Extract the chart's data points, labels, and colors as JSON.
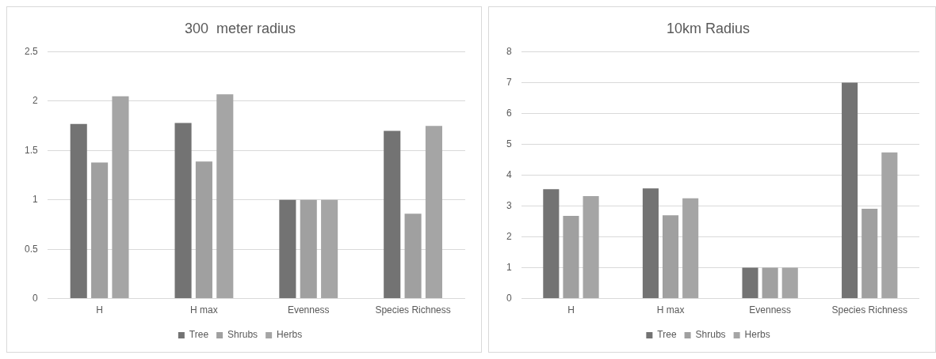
{
  "chart_data": [
    {
      "type": "bar",
      "title": "300  meter radius",
      "categories": [
        "H",
        "H max",
        "Evenness",
        "Species Richness"
      ],
      "series": [
        {
          "name": "Tree",
          "color": "#737373",
          "values": [
            1.77,
            1.78,
            1,
            1.7
          ]
        },
        {
          "name": "Shrubs",
          "color": "#a0a0a0",
          "values": [
            1.38,
            1.39,
            1,
            0.86
          ]
        },
        {
          "name": "Herbs",
          "color": "#a5a5a5",
          "values": [
            2.05,
            2.07,
            1,
            1.75
          ]
        }
      ],
      "ylim": [
        0,
        2.5
      ],
      "yticks": [
        0,
        0.5,
        1,
        1.5,
        2,
        2.5
      ],
      "grid": "y",
      "legend": "bottom"
    },
    {
      "type": "bar",
      "title": "10km Radius",
      "categories": [
        "H",
        "H max",
        "Evenness",
        "Species Richness"
      ],
      "series": [
        {
          "name": "Tree",
          "color": "#737373",
          "values": [
            3.55,
            3.57,
            1,
            7
          ]
        },
        {
          "name": "Shrubs",
          "color": "#a0a0a0",
          "values": [
            2.68,
            2.7,
            1,
            2.91
          ]
        },
        {
          "name": "Herbs",
          "color": "#a5a5a5",
          "values": [
            3.32,
            3.25,
            1,
            4.74
          ]
        }
      ],
      "ylim": [
        0,
        8
      ],
      "yticks": [
        0,
        1,
        2,
        3,
        4,
        5,
        6,
        7,
        8
      ],
      "grid": "y",
      "legend": "bottom"
    }
  ]
}
